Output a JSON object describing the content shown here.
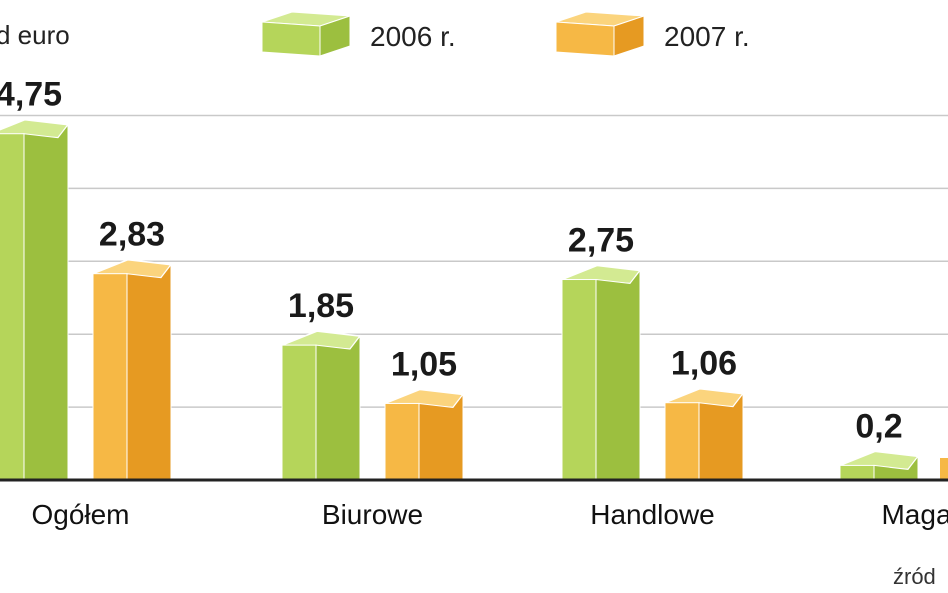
{
  "chart_data": {
    "type": "bar",
    "unit_label": "d euro",
    "categories": [
      "Ogółem",
      "Biurowe",
      "Handlowe",
      "Magazy"
    ],
    "series": [
      {
        "name": "2006 r.",
        "values": [
          4.75,
          1.85,
          2.75,
          0.2
        ],
        "labels": [
          "4,75",
          "1,85",
          "2,75",
          "0,2"
        ],
        "colors": {
          "front": "#b5d55a",
          "side": "#9cbf3f",
          "top": "#d3ea92"
        }
      },
      {
        "name": "2007 r.",
        "values": [
          2.83,
          1.05,
          1.06,
          null
        ],
        "labels": [
          "2,83",
          "1,05",
          "1,06",
          ""
        ],
        "colors": {
          "front": "#f6b845",
          "side": "#e69a22",
          "top": "#fbd47d"
        }
      }
    ],
    "gridlines": [
      1,
      2,
      3,
      4,
      5
    ],
    "source_text": "źród"
  }
}
